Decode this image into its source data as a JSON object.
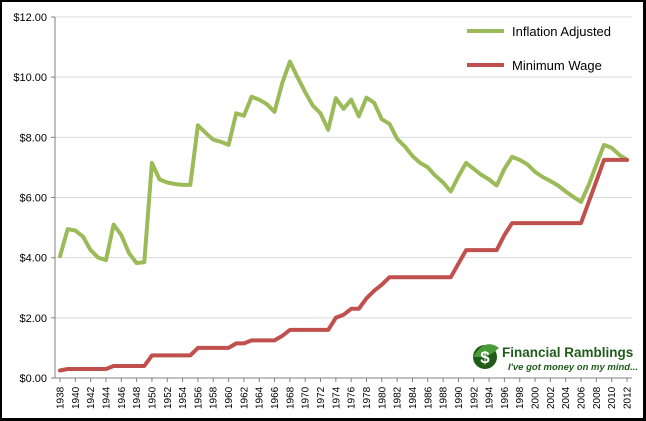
{
  "chart_data": {
    "type": "line",
    "title": "",
    "xlabel": "",
    "ylabel": "",
    "ylim": [
      0,
      12
    ],
    "y_ticks": [
      "$0.00",
      "$2.00",
      "$4.00",
      "$6.00",
      "$8.00",
      "$10.00",
      "$12.00"
    ],
    "y_tick_values": [
      0,
      2,
      4,
      6,
      8,
      10,
      12
    ],
    "x_tick_labels": [
      "1938",
      "1940",
      "1942",
      "1944",
      "1946",
      "1948",
      "1950",
      "1952",
      "1954",
      "1956",
      "1958",
      "1960",
      "1962",
      "1964",
      "1966",
      "1968",
      "1970",
      "1972",
      "1974",
      "1976",
      "1978",
      "1980",
      "1982",
      "1984",
      "1986",
      "1988",
      "1990",
      "1992",
      "1994",
      "1996",
      "1998",
      "2000",
      "2002",
      "2004",
      "2006",
      "2008",
      "2010",
      "2012"
    ],
    "grid": "horizontal",
    "legend_position": "top-right",
    "x": [
      1938,
      1939,
      1940,
      1941,
      1942,
      1943,
      1944,
      1945,
      1946,
      1947,
      1948,
      1949,
      1950,
      1951,
      1952,
      1953,
      1954,
      1955,
      1956,
      1957,
      1958,
      1959,
      1960,
      1961,
      1962,
      1963,
      1964,
      1965,
      1966,
      1967,
      1968,
      1969,
      1970,
      1971,
      1972,
      1973,
      1974,
      1975,
      1976,
      1977,
      1978,
      1979,
      1980,
      1981,
      1982,
      1983,
      1984,
      1985,
      1986,
      1987,
      1988,
      1989,
      1990,
      1991,
      1992,
      1993,
      1994,
      1995,
      1996,
      1997,
      1998,
      1999,
      2000,
      2001,
      2002,
      2003,
      2004,
      2005,
      2006,
      2007,
      2008,
      2009,
      2010,
      2011,
      2012
    ],
    "series": [
      {
        "name": "Inflation Adjusted",
        "color": "#9bbb59",
        "values": [
          4.05,
          4.95,
          4.9,
          4.7,
          4.25,
          4.0,
          3.92,
          5.1,
          4.75,
          4.15,
          3.82,
          3.85,
          7.15,
          6.6,
          6.5,
          6.45,
          6.42,
          6.42,
          8.4,
          8.15,
          7.92,
          7.85,
          7.75,
          8.8,
          8.72,
          9.35,
          9.25,
          9.1,
          8.85,
          9.8,
          10.52,
          10.0,
          9.5,
          9.05,
          8.8,
          8.25,
          9.3,
          8.95,
          9.25,
          8.7,
          9.32,
          9.15,
          8.6,
          8.45,
          7.95,
          7.7,
          7.38,
          7.15,
          7.0,
          6.72,
          6.5,
          6.2,
          6.7,
          7.15,
          6.95,
          6.75,
          6.6,
          6.4,
          6.95,
          7.35,
          7.25,
          7.1,
          6.85,
          6.68,
          6.55,
          6.4,
          6.2,
          6.02,
          5.85,
          6.42,
          7.1,
          7.75,
          7.65,
          7.42,
          7.25
        ]
      },
      {
        "name": "Minimum Wage",
        "color": "#c0504d",
        "values": [
          0.25,
          0.3,
          0.3,
          0.3,
          0.3,
          0.3,
          0.3,
          0.4,
          0.4,
          0.4,
          0.4,
          0.4,
          0.75,
          0.75,
          0.75,
          0.75,
          0.75,
          0.75,
          1.0,
          1.0,
          1.0,
          1.0,
          1.0,
          1.15,
          1.15,
          1.25,
          1.25,
          1.25,
          1.25,
          1.4,
          1.6,
          1.6,
          1.6,
          1.6,
          1.6,
          1.6,
          2.0,
          2.1,
          2.3,
          2.3,
          2.65,
          2.9,
          3.1,
          3.35,
          3.35,
          3.35,
          3.35,
          3.35,
          3.35,
          3.35,
          3.35,
          3.35,
          3.8,
          4.25,
          4.25,
          4.25,
          4.25,
          4.25,
          4.75,
          5.15,
          5.15,
          5.15,
          5.15,
          5.15,
          5.15,
          5.15,
          5.15,
          5.15,
          5.15,
          5.85,
          6.55,
          7.25,
          7.25,
          7.25,
          7.25
        ]
      }
    ]
  },
  "brand": {
    "name": "Financial Ramblings",
    "tagline": "I've got money on my mind...",
    "logo_symbol": "$",
    "icon": "dollar-leaf-icon",
    "color": "#1f5c1a"
  }
}
